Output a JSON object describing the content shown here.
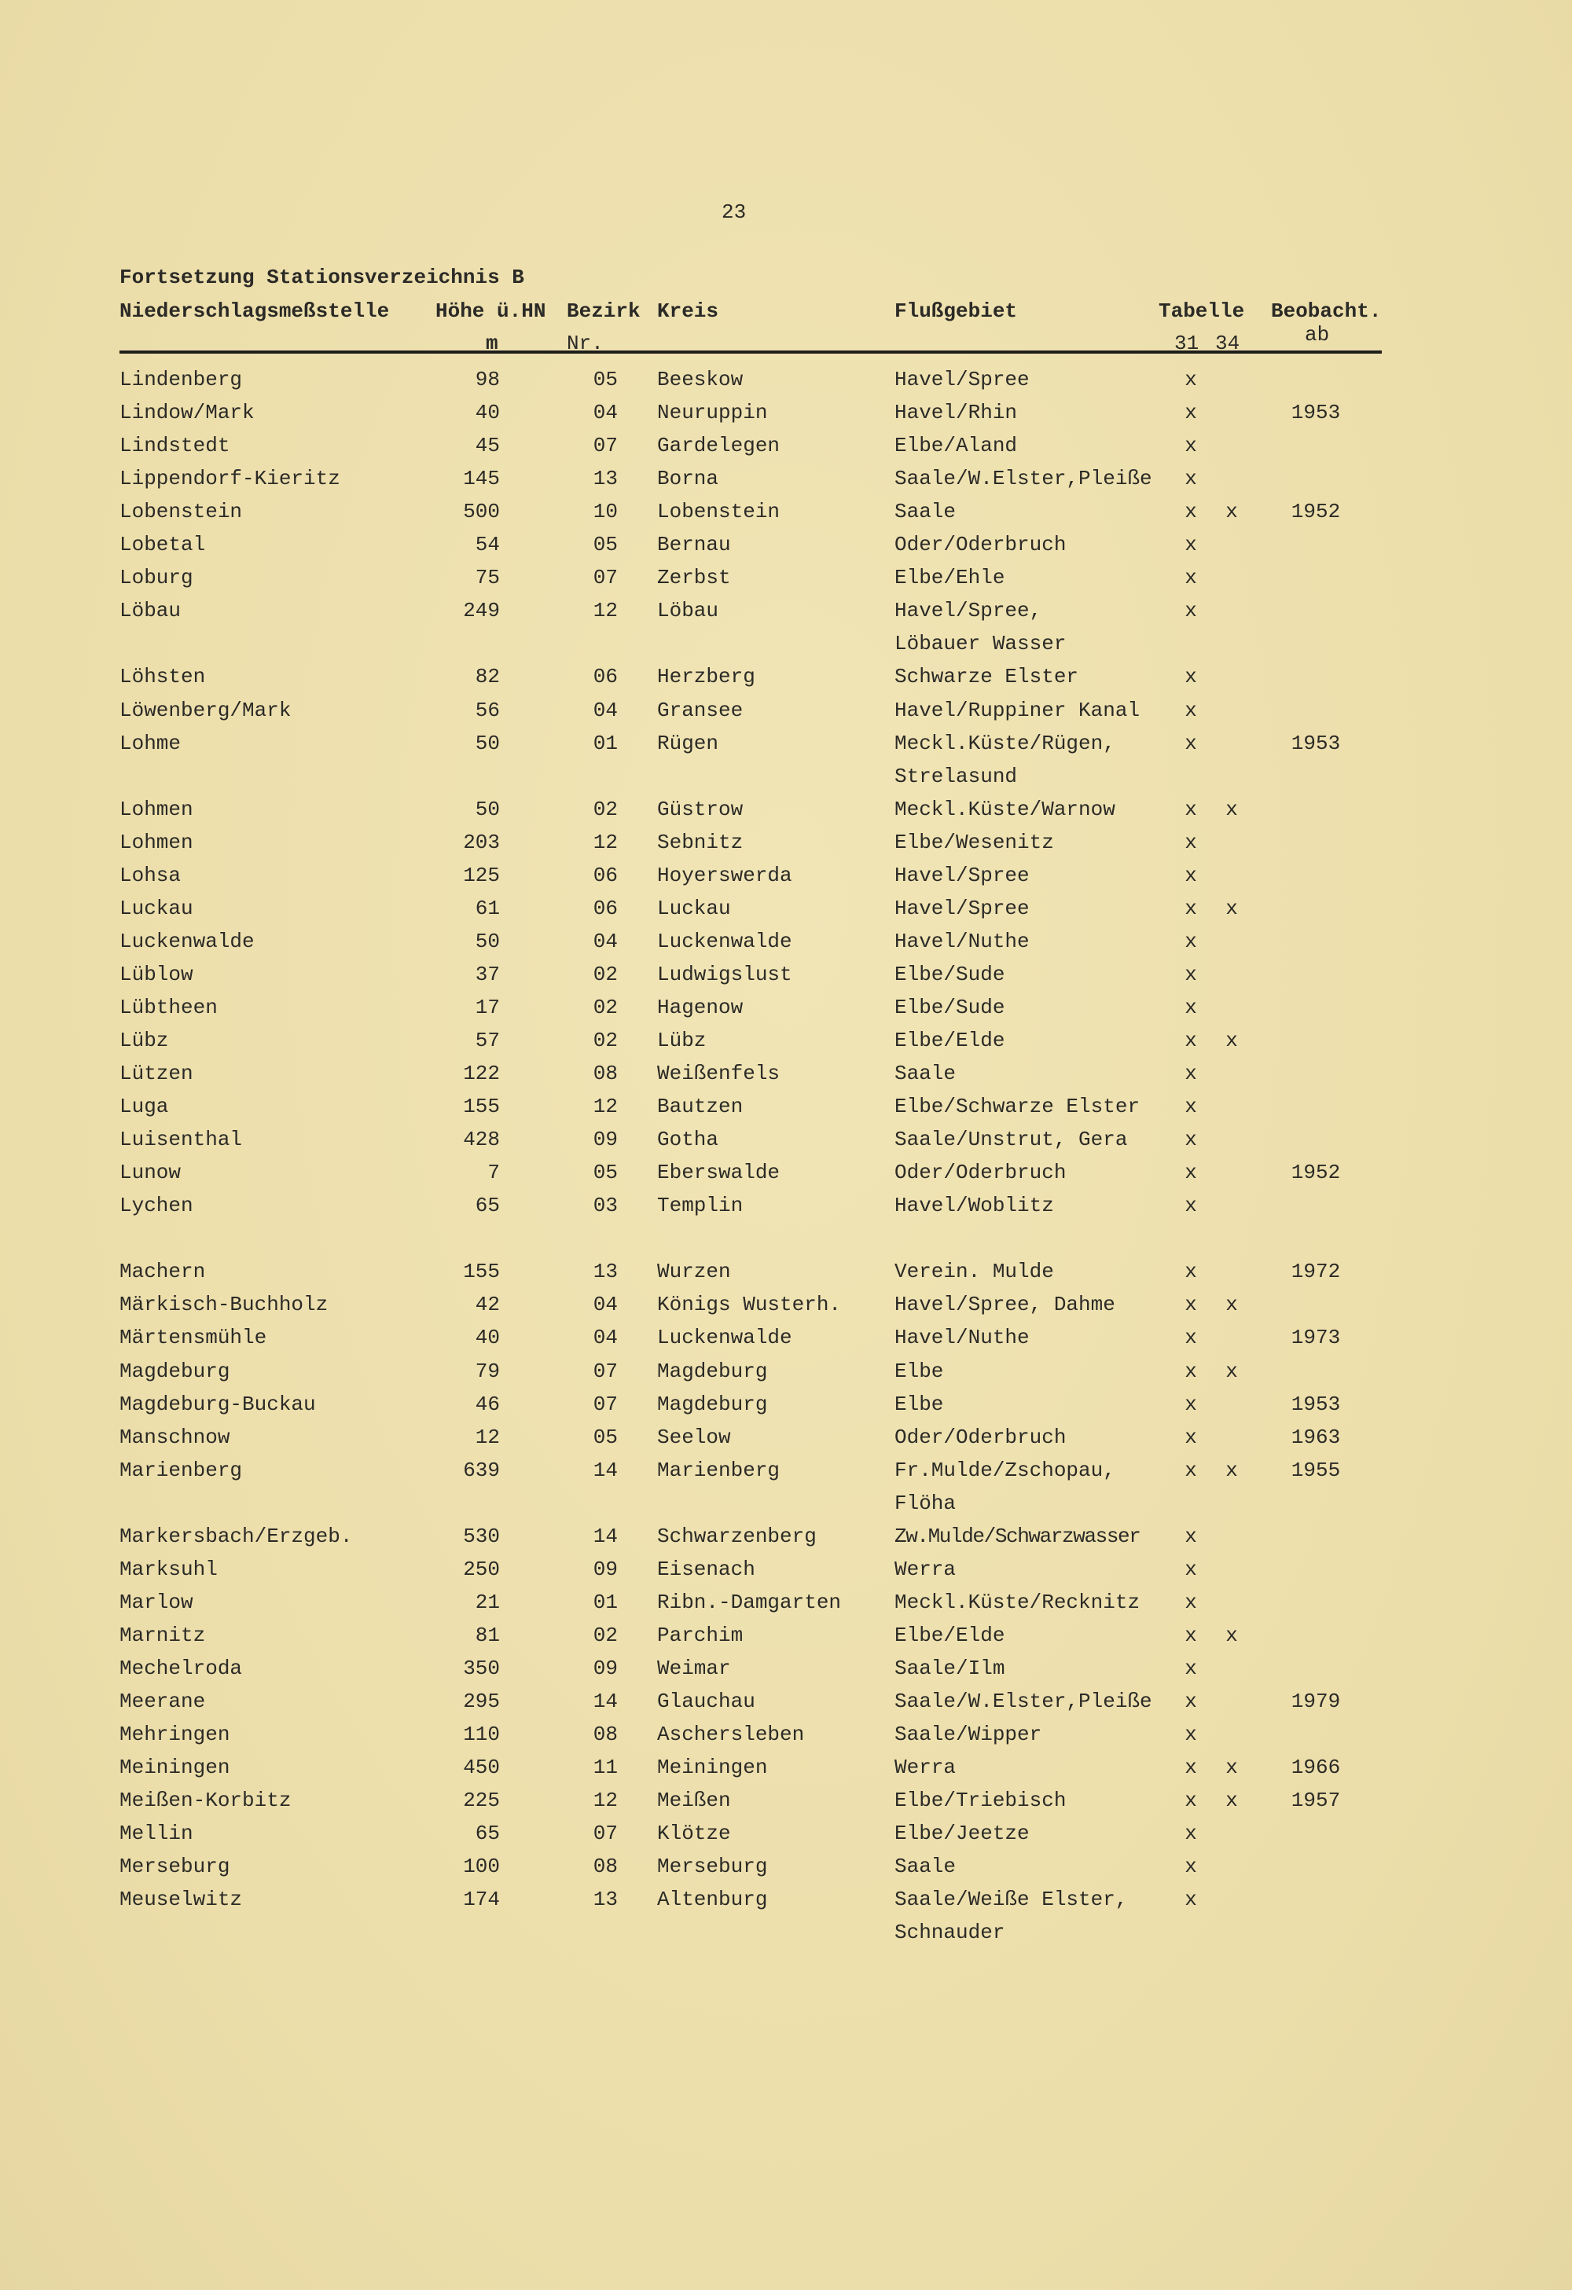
{
  "page_number": "23",
  "title": "Fortsetzung Stationsverzeichnis B",
  "columns": {
    "station": "Niederschlagsmeßstelle",
    "hoehe": "Höhe ü.HN",
    "hoehe_unit": "m",
    "bezirk": "Bezirk",
    "bezirk_sub": "Nr.",
    "kreis": "Kreis",
    "fluss": "Flußgebiet",
    "tabelle": "Tabelle",
    "tabelle_31": "31",
    "tabelle_34": "34",
    "beobacht": "Beobacht.",
    "beobacht_sub": "ab"
  },
  "groups": [
    [
      {
        "station": "Lindenberg",
        "hoehe": "98",
        "bezirk": "05",
        "kreis": "Beeskow",
        "fluss": "Havel/Spree",
        "t31": "x",
        "t34": "",
        "ab": ""
      },
      {
        "station": "Lindow/Mark",
        "hoehe": "40",
        "bezirk": "04",
        "kreis": "Neuruppin",
        "fluss": "Havel/Rhin",
        "t31": "x",
        "t34": "",
        "ab": "1953"
      },
      {
        "station": "Lindstedt",
        "hoehe": "45",
        "bezirk": "07",
        "kreis": "Gardelegen",
        "fluss": "Elbe/Aland",
        "t31": "x",
        "t34": "",
        "ab": ""
      },
      {
        "station": "Lippendorf-Kieritz",
        "hoehe": "145",
        "bezirk": "13",
        "kreis": "Borna",
        "fluss": "Saale/W.Elster,Pleiße",
        "t31": "x",
        "t34": "",
        "ab": ""
      },
      {
        "station": "Lobenstein",
        "hoehe": "500",
        "bezirk": "10",
        "kreis": "Lobenstein",
        "fluss": "Saale",
        "t31": "x",
        "t34": "x",
        "ab": "1952"
      },
      {
        "station": "Lobetal",
        "hoehe": "54",
        "bezirk": "05",
        "kreis": "Bernau",
        "fluss": "Oder/Oderbruch",
        "t31": "x",
        "t34": "",
        "ab": ""
      },
      {
        "station": "Loburg",
        "hoehe": "75",
        "bezirk": "07",
        "kreis": "Zerbst",
        "fluss": "Elbe/Ehle",
        "t31": "x",
        "t34": "",
        "ab": ""
      },
      {
        "station": "Löbau",
        "hoehe": "249",
        "bezirk": "12",
        "kreis": "Löbau",
        "fluss": "Havel/Spree,",
        "fluss_cont": "Löbauer Wasser",
        "t31": "x",
        "t34": "",
        "ab": ""
      },
      {
        "station": "Löhsten",
        "hoehe": "82",
        "bezirk": "06",
        "kreis": "Herzberg",
        "fluss": "Schwarze Elster",
        "t31": "x",
        "t34": "",
        "ab": ""
      },
      {
        "station": "Löwenberg/Mark",
        "hoehe": "56",
        "bezirk": "04",
        "kreis": "Gransee",
        "fluss": "Havel/Ruppiner Kanal",
        "t31": "x",
        "t34": "",
        "ab": ""
      },
      {
        "station": "Lohme",
        "hoehe": "50",
        "bezirk": "01",
        "kreis": "Rügen",
        "fluss": "Meckl.Küste/Rügen,",
        "fluss_cont": "Strelasund",
        "t31": "x",
        "t34": "",
        "ab": "1953"
      },
      {
        "station": "Lohmen",
        "hoehe": "50",
        "bezirk": "02",
        "kreis": "Güstrow",
        "fluss": "Meckl.Küste/Warnow",
        "t31": "x",
        "t34": "x",
        "ab": ""
      },
      {
        "station": "Lohmen",
        "hoehe": "203",
        "bezirk": "12",
        "kreis": "Sebnitz",
        "fluss": "Elbe/Wesenitz",
        "t31": "x",
        "t34": "",
        "ab": ""
      },
      {
        "station": "Lohsa",
        "hoehe": "125",
        "bezirk": "06",
        "kreis": "Hoyerswerda",
        "fluss": "Havel/Spree",
        "t31": "x",
        "t34": "",
        "ab": ""
      },
      {
        "station": "Luckau",
        "hoehe": "61",
        "bezirk": "06",
        "kreis": "Luckau",
        "fluss": "Havel/Spree",
        "t31": "x",
        "t34": "x",
        "ab": ""
      },
      {
        "station": "Luckenwalde",
        "hoehe": "50",
        "bezirk": "04",
        "kreis": "Luckenwalde",
        "fluss": "Havel/Nuthe",
        "t31": "x",
        "t34": "",
        "ab": ""
      },
      {
        "station": "Lüblow",
        "hoehe": "37",
        "bezirk": "02",
        "kreis": "Ludwigslust",
        "fluss": "Elbe/Sude",
        "t31": "x",
        "t34": "",
        "ab": ""
      },
      {
        "station": "Lübtheen",
        "hoehe": "17",
        "bezirk": "02",
        "kreis": "Hagenow",
        "fluss": "Elbe/Sude",
        "t31": "x",
        "t34": "",
        "ab": ""
      },
      {
        "station": "Lübz",
        "hoehe": "57",
        "bezirk": "02",
        "kreis": "Lübz",
        "fluss": "Elbe/Elde",
        "t31": "x",
        "t34": "x",
        "ab": ""
      },
      {
        "station": "Lützen",
        "hoehe": "122",
        "bezirk": "08",
        "kreis": "Weißenfels",
        "fluss": "Saale",
        "t31": "x",
        "t34": "",
        "ab": ""
      },
      {
        "station": "Luga",
        "hoehe": "155",
        "bezirk": "12",
        "kreis": "Bautzen",
        "fluss": "Elbe/Schwarze Elster",
        "t31": "x",
        "t34": "",
        "ab": ""
      },
      {
        "station": "Luisenthal",
        "hoehe": "428",
        "bezirk": "09",
        "kreis": "Gotha",
        "fluss": "Saale/Unstrut, Gera",
        "t31": "x",
        "t34": "",
        "ab": ""
      },
      {
        "station": "Lunow",
        "hoehe": "7",
        "bezirk": "05",
        "kreis": "Eberswalde",
        "fluss": "Oder/Oderbruch",
        "t31": "x",
        "t34": "",
        "ab": "1952"
      },
      {
        "station": "Lychen",
        "hoehe": "65",
        "bezirk": "03",
        "kreis": "Templin",
        "fluss": "Havel/Woblitz",
        "t31": "x",
        "t34": "",
        "ab": ""
      }
    ],
    [
      {
        "station": "Machern",
        "hoehe": "155",
        "bezirk": "13",
        "kreis": "Wurzen",
        "fluss": "Verein. Mulde",
        "t31": "x",
        "t34": "",
        "ab": "1972"
      },
      {
        "station": "Märkisch-Buchholz",
        "hoehe": "42",
        "bezirk": "04",
        "kreis": "Königs Wusterh.",
        "fluss": "Havel/Spree, Dahme",
        "t31": "x",
        "t34": "x",
        "ab": ""
      },
      {
        "station": "Märtensmühle",
        "hoehe": "40",
        "bezirk": "04",
        "kreis": "Luckenwalde",
        "fluss": "Havel/Nuthe",
        "t31": "x",
        "t34": "",
        "ab": "1973"
      },
      {
        "station": "Magdeburg",
        "hoehe": "79",
        "bezirk": "07",
        "kreis": "Magdeburg",
        "fluss": "Elbe",
        "t31": "x",
        "t34": "x",
        "ab": ""
      },
      {
        "station": "Magdeburg-Buckau",
        "hoehe": "46",
        "bezirk": "07",
        "kreis": "Magdeburg",
        "fluss": "Elbe",
        "t31": "x",
        "t34": "",
        "ab": "1953"
      },
      {
        "station": "Manschnow",
        "hoehe": "12",
        "bezirk": "05",
        "kreis": "Seelow",
        "fluss": "Oder/Oderbruch",
        "t31": "x",
        "t34": "",
        "ab": "1963"
      },
      {
        "station": "Marienberg",
        "hoehe": "639",
        "bezirk": "14",
        "kreis": "Marienberg",
        "fluss": "Fr.Mulde/Zschopau,",
        "fluss_cont": "Flöha",
        "t31": "x",
        "t34": "x",
        "ab": "1955"
      },
      {
        "station": "Markersbach/Erzgeb.",
        "hoehe": "530",
        "bezirk": "14",
        "kreis": "Schwarzenberg",
        "fluss": "Zw.Mulde/Schwarzwasser",
        "t31": "x",
        "t34": "",
        "ab": "",
        "tight": true
      },
      {
        "station": "Marksuhl",
        "hoehe": "250",
        "bezirk": "09",
        "kreis": "Eisenach",
        "fluss": "Werra",
        "t31": "x",
        "t34": "",
        "ab": ""
      },
      {
        "station": "Marlow",
        "hoehe": "21",
        "bezirk": "01",
        "kreis": "Ribn.-Damgarten",
        "fluss": "Meckl.Küste/Recknitz",
        "t31": "x",
        "t34": "",
        "ab": ""
      },
      {
        "station": "Marnitz",
        "hoehe": "81",
        "bezirk": "02",
        "kreis": "Parchim",
        "fluss": "Elbe/Elde",
        "t31": "x",
        "t34": "x",
        "ab": ""
      },
      {
        "station": "Mechelroda",
        "hoehe": "350",
        "bezirk": "09",
        "kreis": "Weimar",
        "fluss": "Saale/Ilm",
        "t31": "x",
        "t34": "",
        "ab": ""
      },
      {
        "station": "Meerane",
        "hoehe": "295",
        "bezirk": "14",
        "kreis": "Glauchau",
        "fluss": "Saale/W.Elster,Pleiße",
        "t31": "x",
        "t34": "",
        "ab": "1979"
      },
      {
        "station": "Mehringen",
        "hoehe": "110",
        "bezirk": "08",
        "kreis": "Aschersleben",
        "fluss": "Saale/Wipper",
        "t31": "x",
        "t34": "",
        "ab": ""
      },
      {
        "station": "Meiningen",
        "hoehe": "450",
        "bezirk": "11",
        "kreis": "Meiningen",
        "fluss": "Werra",
        "t31": "x",
        "t34": "x",
        "ab": "1966"
      },
      {
        "station": "Meißen-Korbitz",
        "hoehe": "225",
        "bezirk": "12",
        "kreis": "Meißen",
        "fluss": "Elbe/Triebisch",
        "t31": "x",
        "t34": "x",
        "ab": "1957"
      },
      {
        "station": "Mellin",
        "hoehe": "65",
        "bezirk": "07",
        "kreis": "Klötze",
        "fluss": "Elbe/Jeetze",
        "t31": "x",
        "t34": "",
        "ab": ""
      },
      {
        "station": "Merseburg",
        "hoehe": "100",
        "bezirk": "08",
        "kreis": "Merseburg",
        "fluss": "Saale",
        "t31": "x",
        "t34": "",
        "ab": ""
      },
      {
        "station": "Meuselwitz",
        "hoehe": "174",
        "bezirk": "13",
        "kreis": "Altenburg",
        "fluss": "Saale/Weiße Elster,",
        "fluss_cont": "Schnauder",
        "t31": "x",
        "t34": "",
        "ab": ""
      }
    ]
  ]
}
